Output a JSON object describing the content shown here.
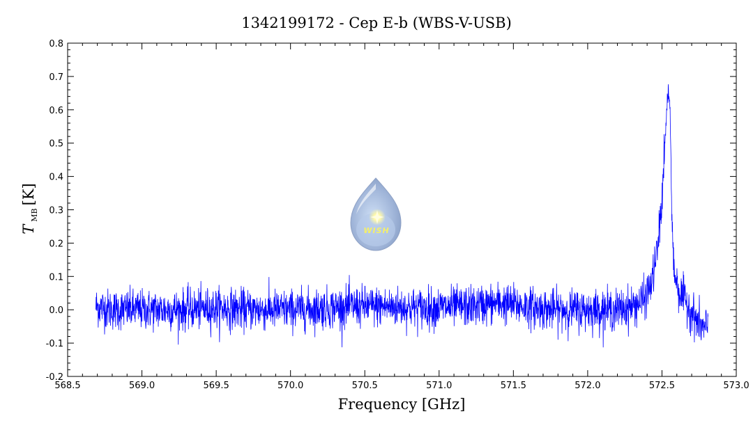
{
  "chart_data": {
    "type": "line",
    "title": "1342199172 - Cep E-b (WBS-V-USB)",
    "xlabel": "Frequency [GHz]",
    "ylabel": {
      "symbol": "T",
      "subscript": "MB",
      "unit": "[K]"
    },
    "xlim": [
      568.5,
      573.0
    ],
    "ylim": [
      -0.2,
      0.8
    ],
    "x_ticks": [
      "568.5",
      "569.0",
      "569.5",
      "570.0",
      "570.5",
      "571.0",
      "571.5",
      "572.0",
      "572.5",
      "573.0"
    ],
    "y_ticks": [
      "-0.2",
      "-0.1",
      "0.0",
      "0.1",
      "0.2",
      "0.3",
      "0.4",
      "0.5",
      "0.6",
      "0.7",
      "0.8"
    ],
    "grid": false,
    "series": [
      {
        "color": "#0000ff",
        "x_range": [
          568.69,
          572.81
        ],
        "points": [
          [
            568.69,
            0.01
          ],
          [
            568.8,
            0.0
          ],
          [
            569.0,
            0.0
          ],
          [
            569.25,
            0.0
          ],
          [
            569.5,
            0.005
          ],
          [
            569.75,
            0.0
          ],
          [
            570.0,
            0.0
          ],
          [
            570.25,
            0.005
          ],
          [
            570.41,
            0.01
          ],
          [
            570.6,
            0.01
          ],
          [
            570.9,
            0.005
          ],
          [
            571.2,
            0.01
          ],
          [
            571.4,
            0.02
          ],
          [
            571.5,
            0.015
          ],
          [
            571.75,
            0.0
          ],
          [
            572.0,
            0.0
          ],
          [
            572.2,
            0.0
          ],
          [
            572.3,
            0.01
          ],
          [
            572.38,
            0.03
          ],
          [
            572.43,
            0.08
          ],
          [
            572.47,
            0.18
          ],
          [
            572.5,
            0.33
          ],
          [
            572.52,
            0.5
          ],
          [
            572.535,
            0.62
          ],
          [
            572.545,
            0.65
          ],
          [
            572.555,
            0.6
          ],
          [
            572.565,
            0.3
          ],
          [
            572.58,
            0.12
          ],
          [
            572.62,
            0.05
          ],
          [
            572.68,
            0.01
          ],
          [
            572.73,
            -0.03
          ],
          [
            572.78,
            -0.06
          ],
          [
            572.81,
            -0.05
          ]
        ],
        "noise_rms": 0.03
      }
    ],
    "logo": {
      "text": "WISH"
    }
  }
}
